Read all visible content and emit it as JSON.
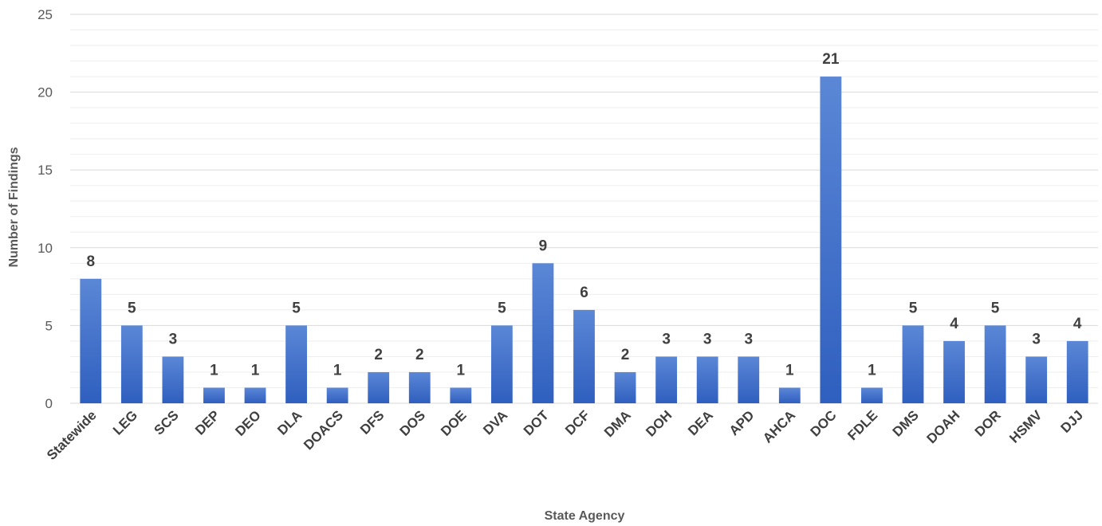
{
  "chart_data": {
    "type": "bar",
    "title": "",
    "xlabel": "State Agency",
    "ylabel": "Number of Findings",
    "ylim": [
      0,
      25
    ],
    "yticks": [
      0,
      5,
      10,
      15,
      20,
      25
    ],
    "minor_grid_step": 1,
    "grid": true,
    "legend": "none",
    "bar_color": "#4472c4",
    "categories": [
      "Statewide",
      "LEG",
      "SCS",
      "DEP",
      "DEO",
      "DLA",
      "DOACS",
      "DFS",
      "DOS",
      "DOE",
      "DVA",
      "DOT",
      "DCF",
      "DMA",
      "DOH",
      "DEA",
      "APD",
      "AHCA",
      "DOC",
      "FDLE",
      "DMS",
      "DOAH",
      "DOR",
      "HSMV",
      "DJJ"
    ],
    "values": [
      8,
      5,
      3,
      1,
      1,
      5,
      1,
      2,
      2,
      1,
      5,
      9,
      6,
      2,
      3,
      3,
      3,
      1,
      21,
      1,
      5,
      4,
      5,
      3,
      4
    ]
  }
}
